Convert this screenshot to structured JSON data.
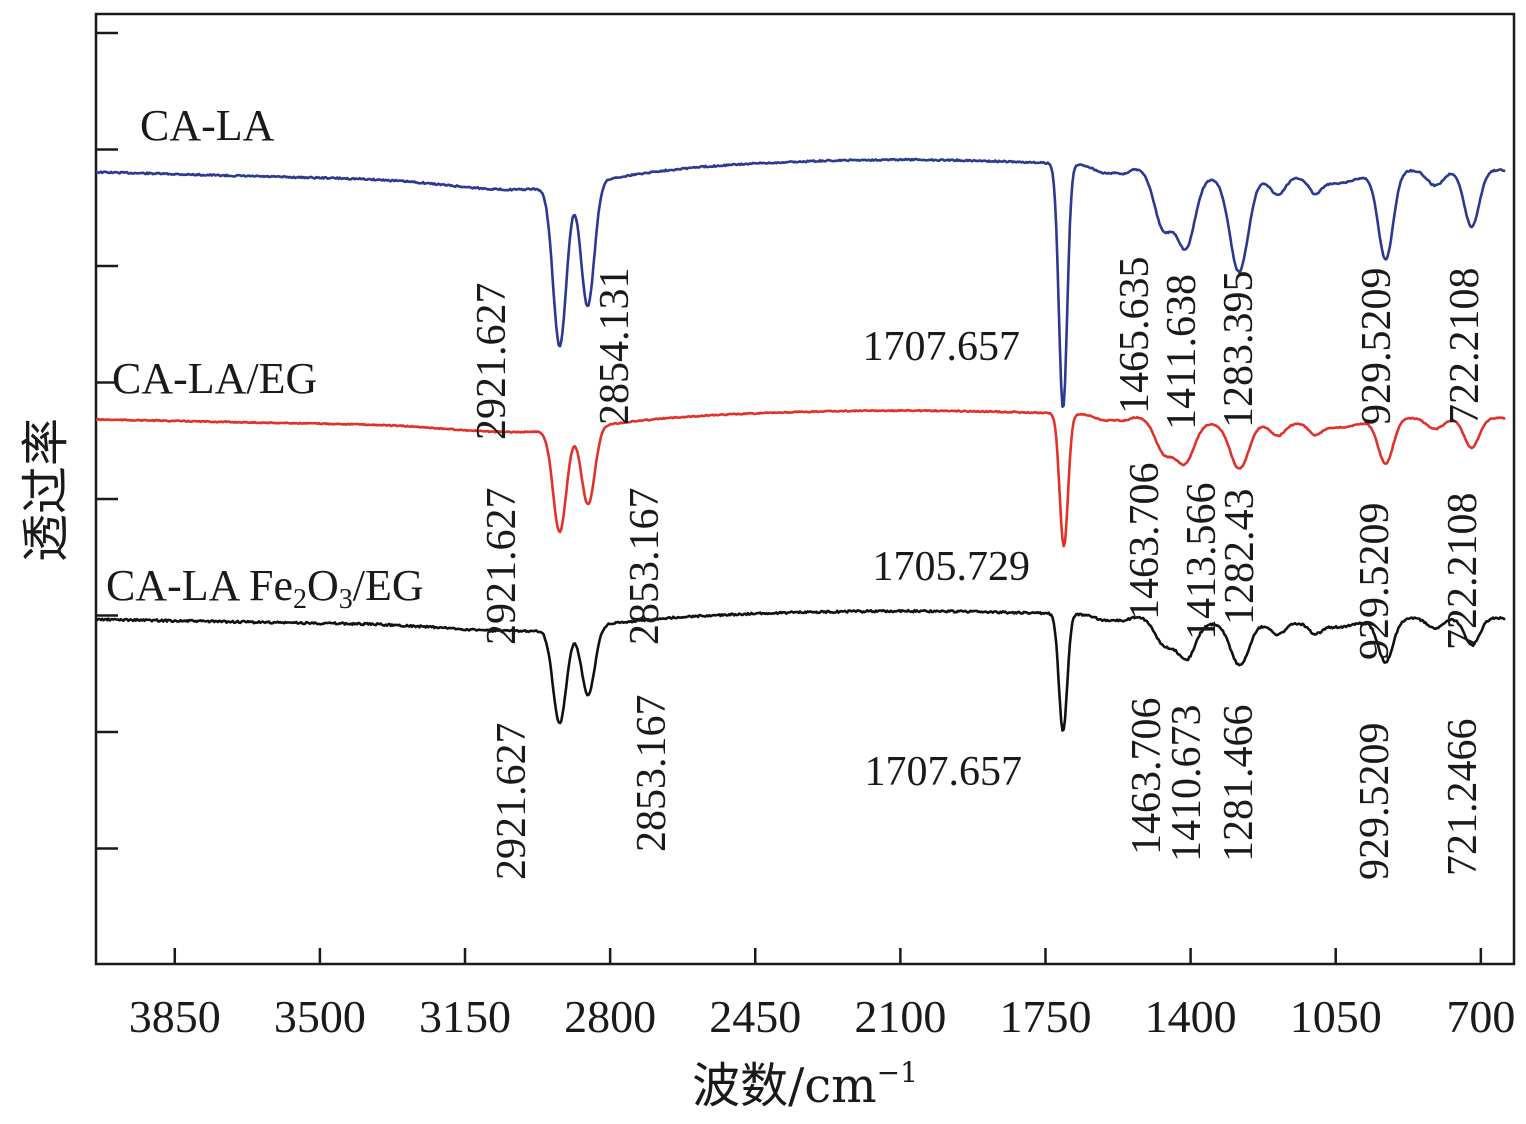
{
  "chart_data": {
    "type": "line",
    "xlabel": "波数/cm",
    "xlabel_sup": "−1",
    "ylabel": "透过率",
    "xlim": [
      4040,
      620
    ],
    "x_reversed": true,
    "x_ticks": [
      3850,
      3500,
      3150,
      2800,
      2450,
      2100,
      1750,
      1400,
      1050,
      700
    ],
    "x_tick_labels": [
      "3850",
      "3500",
      "3150",
      "2800",
      "2450",
      "2100",
      "1750",
      "1400",
      "1050",
      "700"
    ],
    "y_ticks": 8,
    "y_tick_labels_shown": false,
    "grid": false,
    "series": [
      {
        "name": "CA-LA",
        "label_parts": [
          "CA-LA"
        ],
        "color": "#2b3990",
        "peaks": [
          {
            "x": 2921.627,
            "label": "2921.627",
            "depth": 0.62
          },
          {
            "x": 2854.131,
            "label": "2854.131",
            "depth": 0.48
          },
          {
            "x": 1707.657,
            "label": "1707.657",
            "depth": 0.95
          },
          {
            "x": 1465.635,
            "label": "1465.635",
            "depth": 0.22
          },
          {
            "x": 1411.638,
            "label": "1411.638",
            "depth": 0.28
          },
          {
            "x": 1283.395,
            "label": "1283.395",
            "depth": 0.36
          },
          {
            "x": 929.5209,
            "label": "929.5209",
            "depth": 0.34
          },
          {
            "x": 722.2108,
            "label": "722.2108",
            "depth": 0.22
          }
        ]
      },
      {
        "name": "CA-LA/EG",
        "label_parts": [
          "CA-LA/EG"
        ],
        "color": "#e0322a",
        "peaks": [
          {
            "x": 2921.627,
            "label": "2921.627",
            "depth": 0.55
          },
          {
            "x": 2853.167,
            "label": "2853.167",
            "depth": 0.42
          },
          {
            "x": 1705.729,
            "label": "1705.729",
            "depth": 0.72
          },
          {
            "x": 1463.706,
            "label": "1463.706",
            "depth": 0.18
          },
          {
            "x": 1413.566,
            "label": "1413.566",
            "depth": 0.22
          },
          {
            "x": 1282.43,
            "label": "1282.43",
            "depth": 0.24
          },
          {
            "x": 929.5209,
            "label": "929.5209",
            "depth": 0.24
          },
          {
            "x": 722.2108,
            "label": "722.2108",
            "depth": 0.16
          }
        ]
      },
      {
        "name": "CA-LA Fe2O3/EG",
        "label_parts": [
          "CA-LA Fe",
          "2",
          "O",
          "3",
          "/EG"
        ],
        "color": "#111111",
        "peaks": [
          {
            "x": 2921.627,
            "label": "2921.627",
            "depth": 0.55
          },
          {
            "x": 2853.167,
            "label": "2853.167",
            "depth": 0.4
          },
          {
            "x": 1707.657,
            "label": "1707.657",
            "depth": 0.68
          },
          {
            "x": 1463.706,
            "label": "1463.706",
            "depth": 0.15
          },
          {
            "x": 1410.673,
            "label": "1410.673",
            "depth": 0.22
          },
          {
            "x": 1281.466,
            "label": "1281.466",
            "depth": 0.24
          },
          {
            "x": 929.5209,
            "label": "929.5209",
            "depth": 0.25
          },
          {
            "x": 721.2466,
            "label": "721.2466",
            "depth": 0.16
          }
        ]
      }
    ]
  }
}
